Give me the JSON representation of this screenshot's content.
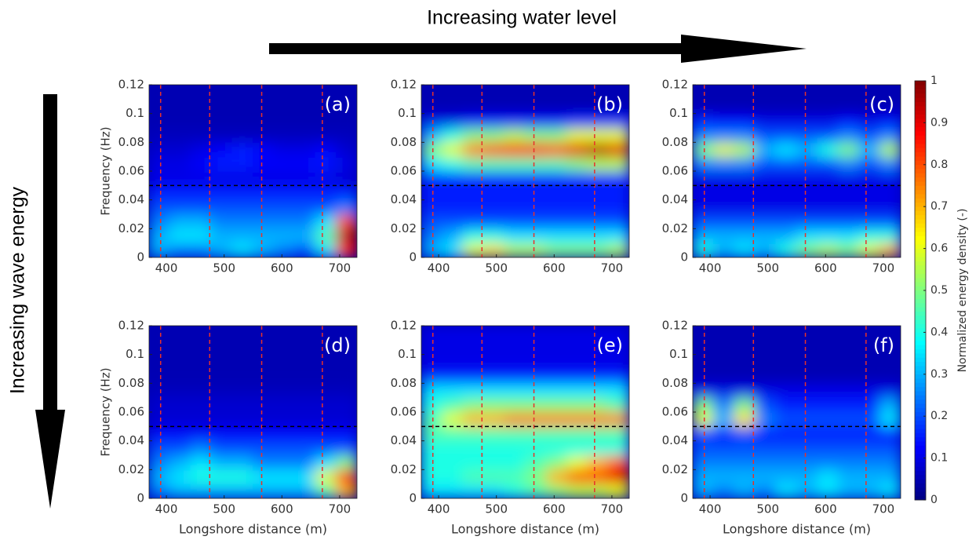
{
  "annotations": {
    "top": "Increasing water level",
    "left": "Increasing wave energy"
  },
  "colorbar": {
    "label": "Normalized energy density (-)",
    "lim": [
      0,
      1
    ],
    "ticks": [
      0,
      0.1,
      0.2,
      0.3,
      0.4,
      0.5,
      0.6,
      0.7,
      0.8,
      0.9,
      1
    ]
  },
  "chart_data": [
    {
      "type": "heatmap",
      "label": "(a)",
      "ylabel": "Frequency (Hz)",
      "xlim": [
        370,
        730
      ],
      "ylim": [
        0,
        0.12
      ],
      "xticks": [
        400,
        500,
        600,
        700
      ],
      "yticks": [
        0,
        0.02,
        0.04,
        0.06,
        0.08,
        0.1,
        0.12
      ],
      "vlines": [
        390,
        475,
        565,
        670
      ],
      "hline": 0.05,
      "x": [
        388,
        424,
        460,
        496,
        532,
        568,
        604,
        640,
        676,
        712
      ],
      "y": [
        0.005,
        0.015,
        0.025,
        0.035,
        0.045,
        0.055,
        0.065,
        0.075,
        0.085,
        0.095,
        0.105,
        0.115
      ],
      "z": [
        [
          0.3,
          0.25,
          0.25,
          0.3,
          0.35,
          0.3,
          0.25,
          0.2,
          0.35,
          0.85
        ],
        [
          0.3,
          0.35,
          0.35,
          0.3,
          0.3,
          0.3,
          0.3,
          0.3,
          0.45,
          0.95
        ],
        [
          0.25,
          0.3,
          0.3,
          0.25,
          0.25,
          0.25,
          0.25,
          0.25,
          0.35,
          0.8
        ],
        [
          0.2,
          0.2,
          0.2,
          0.2,
          0.2,
          0.2,
          0.2,
          0.2,
          0.2,
          0.25
        ],
        [
          0.15,
          0.15,
          0.15,
          0.15,
          0.15,
          0.15,
          0.15,
          0.15,
          0.15,
          0.15
        ],
        [
          0.1,
          0.1,
          0.1,
          0.1,
          0.1,
          0.1,
          0.1,
          0.1,
          0.1,
          0.08
        ],
        [
          0.1,
          0.1,
          0.12,
          0.15,
          0.15,
          0.12,
          0.12,
          0.12,
          0.15,
          0.1
        ],
        [
          0.08,
          0.08,
          0.1,
          0.12,
          0.15,
          0.12,
          0.1,
          0.1,
          0.12,
          0.08
        ],
        [
          0.06,
          0.06,
          0.06,
          0.06,
          0.06,
          0.06,
          0.06,
          0.06,
          0.06,
          0.06
        ],
        [
          0.05,
          0.05,
          0.05,
          0.05,
          0.05,
          0.05,
          0.05,
          0.05,
          0.05,
          0.05
        ],
        [
          0.05,
          0.05,
          0.05,
          0.05,
          0.05,
          0.05,
          0.05,
          0.05,
          0.05,
          0.05
        ],
        [
          0.05,
          0.05,
          0.05,
          0.05,
          0.05,
          0.05,
          0.05,
          0.05,
          0.05,
          0.05
        ]
      ]
    },
    {
      "type": "heatmap",
      "label": "(b)",
      "xlim": [
        370,
        730
      ],
      "ylim": [
        0,
        0.12
      ],
      "xticks": [
        400,
        500,
        600,
        700
      ],
      "yticks": [
        0,
        0.02,
        0.04,
        0.06,
        0.08,
        0.1,
        0.12
      ],
      "vlines": [
        390,
        475,
        565,
        670
      ],
      "hline": 0.05,
      "x": [
        388,
        424,
        460,
        496,
        532,
        568,
        604,
        640,
        676,
        712
      ],
      "y": [
        0.005,
        0.015,
        0.025,
        0.035,
        0.045,
        0.055,
        0.065,
        0.075,
        0.085,
        0.095,
        0.105,
        0.115
      ],
      "z": [
        [
          0.3,
          0.35,
          0.6,
          0.65,
          0.55,
          0.55,
          0.5,
          0.5,
          0.5,
          0.55
        ],
        [
          0.25,
          0.3,
          0.4,
          0.4,
          0.35,
          0.35,
          0.35,
          0.35,
          0.35,
          0.35
        ],
        [
          0.2,
          0.2,
          0.2,
          0.2,
          0.2,
          0.2,
          0.2,
          0.2,
          0.2,
          0.2
        ],
        [
          0.15,
          0.15,
          0.15,
          0.15,
          0.15,
          0.15,
          0.15,
          0.15,
          0.15,
          0.15
        ],
        [
          0.15,
          0.15,
          0.15,
          0.15,
          0.15,
          0.15,
          0.15,
          0.15,
          0.15,
          0.15
        ],
        [
          0.15,
          0.15,
          0.15,
          0.15,
          0.15,
          0.15,
          0.15,
          0.15,
          0.15,
          0.15
        ],
        [
          0.35,
          0.4,
          0.45,
          0.45,
          0.45,
          0.45,
          0.45,
          0.5,
          0.55,
          0.55
        ],
        [
          0.5,
          0.6,
          0.75,
          0.8,
          0.85,
          0.85,
          0.8,
          0.9,
          0.95,
          0.9
        ],
        [
          0.3,
          0.4,
          0.5,
          0.5,
          0.55,
          0.5,
          0.5,
          0.6,
          0.6,
          0.6
        ],
        [
          0.1,
          0.1,
          0.12,
          0.12,
          0.12,
          0.12,
          0.12,
          0.15,
          0.15,
          0.15
        ],
        [
          0.05,
          0.05,
          0.05,
          0.05,
          0.05,
          0.05,
          0.05,
          0.05,
          0.05,
          0.05
        ],
        [
          0.05,
          0.05,
          0.05,
          0.05,
          0.05,
          0.05,
          0.05,
          0.05,
          0.05,
          0.05
        ]
      ]
    },
    {
      "type": "heatmap",
      "label": "(c)",
      "xlim": [
        370,
        730
      ],
      "ylim": [
        0,
        0.12
      ],
      "xticks": [
        400,
        500,
        600,
        700
      ],
      "yticks": [
        0,
        0.02,
        0.04,
        0.06,
        0.08,
        0.1,
        0.12
      ],
      "vlines": [
        390,
        475,
        565,
        670
      ],
      "hline": 0.05,
      "x": [
        388,
        424,
        460,
        496,
        532,
        568,
        604,
        640,
        676,
        712
      ],
      "y": [
        0.005,
        0.015,
        0.025,
        0.035,
        0.045,
        0.055,
        0.065,
        0.075,
        0.085,
        0.095,
        0.105,
        0.115
      ],
      "z": [
        [
          0.4,
          0.3,
          0.35,
          0.3,
          0.4,
          0.5,
          0.55,
          0.5,
          0.6,
          0.7
        ],
        [
          0.3,
          0.3,
          0.3,
          0.3,
          0.3,
          0.35,
          0.35,
          0.35,
          0.4,
          0.4
        ],
        [
          0.2,
          0.2,
          0.2,
          0.2,
          0.2,
          0.2,
          0.2,
          0.2,
          0.2,
          0.2
        ],
        [
          0.1,
          0.1,
          0.1,
          0.1,
          0.1,
          0.1,
          0.1,
          0.1,
          0.1,
          0.1
        ],
        [
          0.1,
          0.1,
          0.1,
          0.1,
          0.1,
          0.1,
          0.1,
          0.1,
          0.1,
          0.1
        ],
        [
          0.1,
          0.1,
          0.1,
          0.1,
          0.1,
          0.1,
          0.1,
          0.1,
          0.1,
          0.1
        ],
        [
          0.25,
          0.25,
          0.25,
          0.2,
          0.2,
          0.2,
          0.2,
          0.25,
          0.2,
          0.25
        ],
        [
          0.5,
          0.6,
          0.55,
          0.3,
          0.35,
          0.3,
          0.4,
          0.5,
          0.3,
          0.55
        ],
        [
          0.25,
          0.25,
          0.25,
          0.2,
          0.2,
          0.2,
          0.2,
          0.25,
          0.2,
          0.25
        ],
        [
          0.15,
          0.12,
          0.12,
          0.1,
          0.1,
          0.1,
          0.1,
          0.12,
          0.1,
          0.12
        ],
        [
          0.05,
          0.05,
          0.05,
          0.05,
          0.05,
          0.05,
          0.05,
          0.05,
          0.05,
          0.05
        ],
        [
          0.05,
          0.05,
          0.05,
          0.05,
          0.05,
          0.05,
          0.05,
          0.05,
          0.05,
          0.05
        ]
      ]
    },
    {
      "type": "heatmap",
      "label": "(d)",
      "xlabel": "Longshore distance (m)",
      "ylabel": "Frequency (Hz)",
      "xlim": [
        370,
        730
      ],
      "ylim": [
        0,
        0.12
      ],
      "xticks": [
        400,
        500,
        600,
        700
      ],
      "yticks": [
        0,
        0.02,
        0.04,
        0.06,
        0.08,
        0.1,
        0.12
      ],
      "vlines": [
        390,
        475,
        565,
        670
      ],
      "hline": 0.05,
      "x": [
        388,
        424,
        460,
        496,
        532,
        568,
        604,
        640,
        676,
        712
      ],
      "y": [
        0.005,
        0.015,
        0.025,
        0.035,
        0.045,
        0.055,
        0.065,
        0.075,
        0.085,
        0.095,
        0.105,
        0.115
      ],
      "z": [
        [
          0.25,
          0.3,
          0.3,
          0.3,
          0.3,
          0.3,
          0.3,
          0.3,
          0.45,
          0.7
        ],
        [
          0.3,
          0.35,
          0.4,
          0.4,
          0.4,
          0.35,
          0.35,
          0.35,
          0.6,
          0.85
        ],
        [
          0.25,
          0.3,
          0.35,
          0.3,
          0.3,
          0.25,
          0.25,
          0.25,
          0.35,
          0.5
        ],
        [
          0.2,
          0.2,
          0.25,
          0.2,
          0.2,
          0.2,
          0.2,
          0.2,
          0.2,
          0.2
        ],
        [
          0.12,
          0.12,
          0.12,
          0.12,
          0.12,
          0.12,
          0.12,
          0.12,
          0.12,
          0.12
        ],
        [
          0.08,
          0.08,
          0.08,
          0.08,
          0.08,
          0.08,
          0.08,
          0.08,
          0.08,
          0.08
        ],
        [
          0.08,
          0.08,
          0.08,
          0.08,
          0.08,
          0.08,
          0.08,
          0.08,
          0.08,
          0.08
        ],
        [
          0.06,
          0.06,
          0.06,
          0.06,
          0.06,
          0.06,
          0.06,
          0.06,
          0.06,
          0.06
        ],
        [
          0.05,
          0.05,
          0.05,
          0.05,
          0.05,
          0.05,
          0.05,
          0.05,
          0.05,
          0.05
        ],
        [
          0.05,
          0.05,
          0.05,
          0.05,
          0.05,
          0.05,
          0.05,
          0.05,
          0.05,
          0.05
        ],
        [
          0.05,
          0.05,
          0.05,
          0.05,
          0.05,
          0.05,
          0.05,
          0.05,
          0.05,
          0.05
        ],
        [
          0.05,
          0.05,
          0.05,
          0.05,
          0.05,
          0.05,
          0.05,
          0.05,
          0.05,
          0.05
        ]
      ]
    },
    {
      "type": "heatmap",
      "label": "(e)",
      "xlabel": "Longshore distance (m)",
      "xlim": [
        370,
        730
      ],
      "ylim": [
        0,
        0.12
      ],
      "xticks": [
        400,
        500,
        600,
        700
      ],
      "yticks": [
        0,
        0.02,
        0.04,
        0.06,
        0.08,
        0.1,
        0.12
      ],
      "vlines": [
        390,
        475,
        565,
        670
      ],
      "hline": 0.05,
      "x": [
        388,
        424,
        460,
        496,
        532,
        568,
        604,
        640,
        676,
        712
      ],
      "y": [
        0.005,
        0.015,
        0.025,
        0.035,
        0.045,
        0.055,
        0.065,
        0.075,
        0.085,
        0.095,
        0.105,
        0.115
      ],
      "z": [
        [
          0.35,
          0.35,
          0.35,
          0.35,
          0.4,
          0.45,
          0.5,
          0.55,
          0.55,
          0.6
        ],
        [
          0.4,
          0.4,
          0.45,
          0.45,
          0.45,
          0.5,
          0.7,
          0.8,
          0.8,
          0.9
        ],
        [
          0.4,
          0.4,
          0.4,
          0.4,
          0.4,
          0.45,
          0.5,
          0.6,
          0.7,
          0.8
        ],
        [
          0.4,
          0.4,
          0.4,
          0.4,
          0.4,
          0.4,
          0.4,
          0.4,
          0.4,
          0.4
        ],
        [
          0.45,
          0.45,
          0.45,
          0.45,
          0.45,
          0.45,
          0.45,
          0.45,
          0.45,
          0.45
        ],
        [
          0.45,
          0.6,
          0.7,
          0.7,
          0.75,
          0.75,
          0.75,
          0.75,
          0.75,
          0.75
        ],
        [
          0.4,
          0.45,
          0.5,
          0.5,
          0.5,
          0.5,
          0.5,
          0.5,
          0.5,
          0.45
        ],
        [
          0.35,
          0.35,
          0.35,
          0.35,
          0.35,
          0.35,
          0.35,
          0.35,
          0.35,
          0.35
        ],
        [
          0.15,
          0.15,
          0.15,
          0.15,
          0.15,
          0.15,
          0.15,
          0.15,
          0.15,
          0.15
        ],
        [
          0.1,
          0.1,
          0.1,
          0.1,
          0.1,
          0.1,
          0.1,
          0.1,
          0.1,
          0.1
        ],
        [
          0.1,
          0.1,
          0.1,
          0.1,
          0.1,
          0.1,
          0.1,
          0.1,
          0.1,
          0.1
        ],
        [
          0.1,
          0.1,
          0.1,
          0.1,
          0.1,
          0.1,
          0.1,
          0.1,
          0.1,
          0.1
        ]
      ]
    },
    {
      "type": "heatmap",
      "label": "(f)",
      "xlabel": "Longshore distance (m)",
      "xlim": [
        370,
        730
      ],
      "ylim": [
        0,
        0.12
      ],
      "xticks": [
        400,
        500,
        600,
        700
      ],
      "yticks": [
        0,
        0.02,
        0.04,
        0.06,
        0.08,
        0.1,
        0.12
      ],
      "vlines": [
        390,
        475,
        565,
        670
      ],
      "hline": 0.05,
      "x": [
        388,
        424,
        460,
        496,
        532,
        568,
        604,
        640,
        676,
        712
      ],
      "y": [
        0.005,
        0.015,
        0.025,
        0.035,
        0.045,
        0.055,
        0.065,
        0.075,
        0.085,
        0.095,
        0.105,
        0.115
      ],
      "z": [
        [
          0.3,
          0.25,
          0.3,
          0.25,
          0.35,
          0.3,
          0.35,
          0.3,
          0.3,
          0.35
        ],
        [
          0.3,
          0.3,
          0.3,
          0.3,
          0.3,
          0.3,
          0.35,
          0.3,
          0.3,
          0.3
        ],
        [
          0.25,
          0.25,
          0.25,
          0.25,
          0.25,
          0.25,
          0.25,
          0.25,
          0.25,
          0.25
        ],
        [
          0.2,
          0.2,
          0.2,
          0.2,
          0.2,
          0.2,
          0.2,
          0.2,
          0.2,
          0.2
        ],
        [
          0.2,
          0.15,
          0.2,
          0.15,
          0.15,
          0.15,
          0.15,
          0.15,
          0.15,
          0.15
        ],
        [
          0.6,
          0.3,
          0.65,
          0.25,
          0.2,
          0.2,
          0.2,
          0.2,
          0.2,
          0.35
        ],
        [
          0.5,
          0.25,
          0.5,
          0.2,
          0.15,
          0.15,
          0.15,
          0.15,
          0.15,
          0.3
        ],
        [
          0.1,
          0.1,
          0.1,
          0.1,
          0.1,
          0.1,
          0.1,
          0.1,
          0.1,
          0.1
        ],
        [
          0.05,
          0.05,
          0.05,
          0.05,
          0.05,
          0.05,
          0.05,
          0.05,
          0.05,
          0.05
        ],
        [
          0.05,
          0.05,
          0.05,
          0.05,
          0.05,
          0.05,
          0.05,
          0.05,
          0.05,
          0.05
        ],
        [
          0.05,
          0.05,
          0.05,
          0.05,
          0.05,
          0.05,
          0.05,
          0.05,
          0.05,
          0.05
        ],
        [
          0.05,
          0.05,
          0.05,
          0.05,
          0.05,
          0.05,
          0.05,
          0.05,
          0.05,
          0.05
        ]
      ]
    }
  ]
}
